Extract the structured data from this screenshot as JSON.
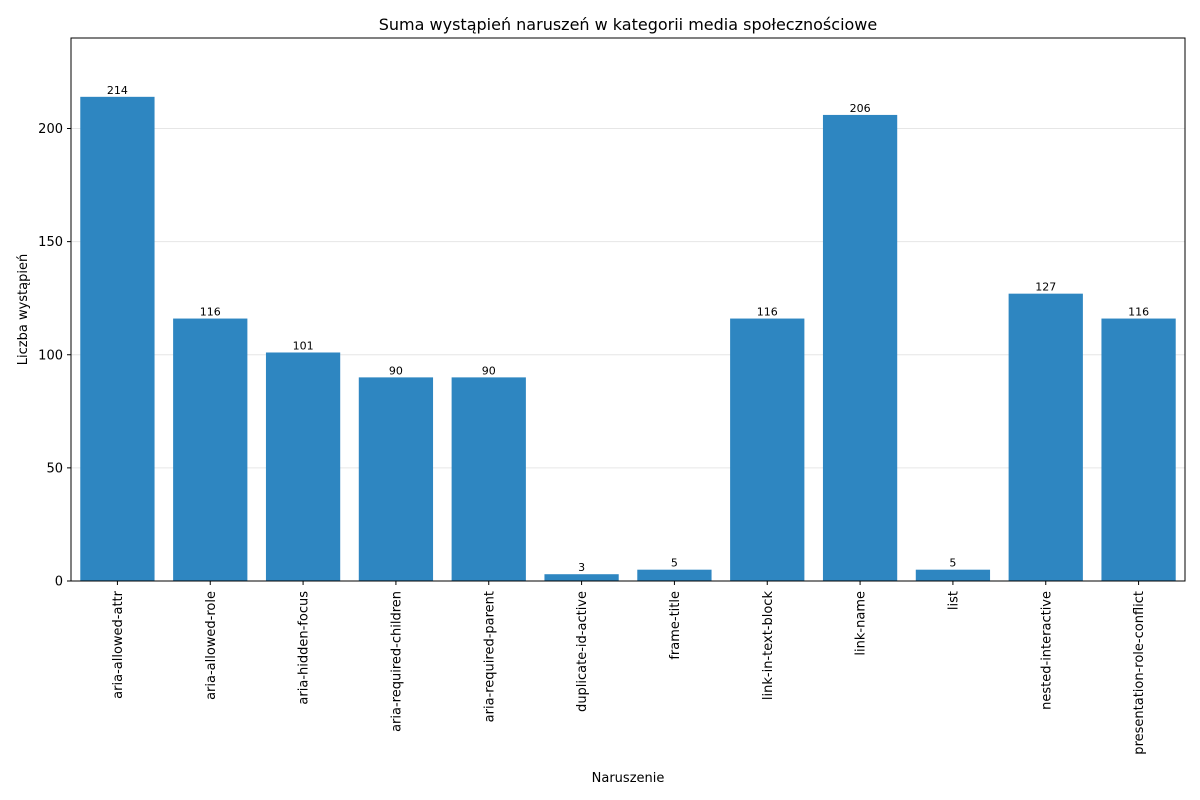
{
  "chart_data": {
    "type": "bar",
    "title": "Suma wystąpień naruszeń w kategorii media społecznościowe",
    "xlabel": "Naruszenie",
    "ylabel": "Liczba wystąpień",
    "categories": [
      "aria-allowed-attr",
      "aria-allowed-role",
      "aria-hidden-focus",
      "aria-required-children",
      "aria-required-parent",
      "duplicate-id-active",
      "frame-title",
      "link-in-text-block",
      "link-name",
      "list",
      "nested-interactive",
      "presentation-role-conflict"
    ],
    "values": [
      214,
      116,
      101,
      90,
      90,
      3,
      5,
      116,
      206,
      5,
      127,
      116
    ],
    "ylim": [
      0,
      240
    ],
    "yticks": [
      0,
      50,
      100,
      150,
      200
    ],
    "grid": "horizontal",
    "bar_color": "#2e86c1"
  }
}
